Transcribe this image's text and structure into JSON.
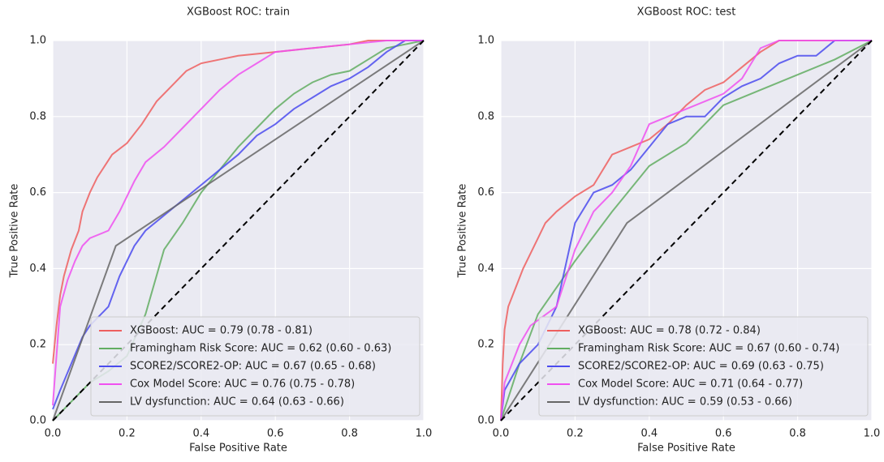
{
  "chart_data": [
    {
      "type": "line",
      "title": "XGBoost ROC: train",
      "x_label": "False Positive Rate",
      "y_label": "True Positive Rate",
      "xlim": [
        0,
        1
      ],
      "ylim": [
        0,
        1
      ],
      "xticks": [
        {
          "value": 0,
          "label": "0.0"
        },
        0.2,
        0.4,
        0.6,
        0.8,
        {
          "value": 1,
          "label": "1.0"
        }
      ],
      "yticks": [
        {
          "value": 0,
          "label": "0.0"
        },
        0.2,
        0.4,
        0.6,
        0.8,
        {
          "value": 1,
          "label": "1.0"
        }
      ],
      "grid": true,
      "legend": "lower right",
      "series": [
        {
          "name": "XGBoost: AUC = 0.79 (0.78 - 0.81)",
          "color": "#ee5f5f",
          "x": [
            0,
            0.005,
            0.01,
            0.02,
            0.03,
            0.05,
            0.07,
            0.08,
            0.1,
            0.12,
            0.14,
            0.16,
            0.2,
            0.24,
            0.28,
            0.32,
            0.36,
            0.4,
            0.45,
            0.5,
            0.6,
            0.7,
            0.8,
            0.85,
            1
          ],
          "values": [
            0.15,
            0.2,
            0.25,
            0.33,
            0.38,
            0.45,
            0.5,
            0.55,
            0.6,
            0.64,
            0.67,
            0.7,
            0.73,
            0.78,
            0.84,
            0.88,
            0.92,
            0.94,
            0.95,
            0.96,
            0.97,
            0.98,
            0.99,
            1,
            1
          ]
        },
        {
          "name": "Framingham Risk Score: AUC = 0.62 (0.60 - 0.63)",
          "color": "#62ad62",
          "x": [
            0,
            0.05,
            0.1,
            0.15,
            0.2,
            0.25,
            0.3,
            0.35,
            0.4,
            0.45,
            0.5,
            0.55,
            0.6,
            0.65,
            0.7,
            0.75,
            0.8,
            0.85,
            0.9,
            0.95,
            1
          ],
          "values": [
            0,
            0.05,
            0.1,
            0.13,
            0.17,
            0.28,
            0.45,
            0.52,
            0.6,
            0.66,
            0.72,
            0.77,
            0.82,
            0.86,
            0.89,
            0.91,
            0.92,
            0.95,
            0.98,
            0.99,
            1
          ]
        },
        {
          "name": "SCORE2/SCORE2-OP: AUC = 0.67 (0.65 - 0.68)",
          "color": "#4b4bee",
          "x": [
            0,
            0.02,
            0.05,
            0.08,
            0.1,
            0.15,
            0.18,
            0.22,
            0.25,
            0.3,
            0.35,
            0.4,
            0.45,
            0.5,
            0.55,
            0.6,
            0.65,
            0.7,
            0.75,
            0.8,
            0.85,
            0.9,
            0.95,
            1
          ],
          "values": [
            0.03,
            0.08,
            0.15,
            0.22,
            0.25,
            0.3,
            0.38,
            0.46,
            0.5,
            0.54,
            0.58,
            0.62,
            0.66,
            0.7,
            0.75,
            0.78,
            0.82,
            0.85,
            0.88,
            0.9,
            0.93,
            0.97,
            1,
            1
          ]
        },
        {
          "name": "Cox Model Score: AUC = 0.76 (0.75 - 0.78)",
          "color": "#f050f0",
          "x": [
            0,
            0.02,
            0.04,
            0.06,
            0.08,
            0.1,
            0.15,
            0.18,
            0.22,
            0.25,
            0.3,
            0.35,
            0.4,
            0.45,
            0.5,
            0.55,
            0.6,
            0.7,
            0.8,
            0.9,
            1
          ],
          "values": [
            0.04,
            0.3,
            0.37,
            0.42,
            0.46,
            0.48,
            0.5,
            0.55,
            0.63,
            0.68,
            0.72,
            0.77,
            0.82,
            0.87,
            0.91,
            0.94,
            0.97,
            0.98,
            0.99,
            1,
            1
          ]
        },
        {
          "name": "LV dysfunction: AUC = 0.64 (0.63 - 0.66)",
          "color": "#666666",
          "x": [
            0,
            0.17,
            1
          ],
          "values": [
            0,
            0.46,
            1
          ]
        }
      ]
    },
    {
      "type": "line",
      "title": "XGBoost ROC: test",
      "x_label": "False Positive Rate",
      "y_label": "True Positive Rate",
      "xlim": [
        0,
        1
      ],
      "ylim": [
        0,
        1
      ],
      "xticks": [
        {
          "value": 0,
          "label": "0.0"
        },
        0.2,
        0.4,
        0.6,
        0.8,
        {
          "value": 1,
          "label": "1.0"
        }
      ],
      "yticks": [
        {
          "value": 0,
          "label": "0.0"
        },
        0.2,
        0.4,
        0.6,
        0.8,
        {
          "value": 1,
          "label": "1.0"
        }
      ],
      "grid": true,
      "legend": "lower right",
      "series": [
        {
          "name": "XGBoost: AUC = 0.78 (0.72 - 0.84)",
          "color": "#ee5f5f",
          "x": [
            0,
            0.005,
            0.01,
            0.02,
            0.04,
            0.06,
            0.08,
            0.1,
            0.12,
            0.15,
            0.2,
            0.25,
            0.3,
            0.35,
            0.4,
            0.45,
            0.5,
            0.55,
            0.6,
            0.65,
            0.7,
            0.75,
            1
          ],
          "values": [
            0,
            0.15,
            0.24,
            0.3,
            0.35,
            0.4,
            0.44,
            0.48,
            0.52,
            0.55,
            0.59,
            0.62,
            0.7,
            0.72,
            0.74,
            0.78,
            0.83,
            0.87,
            0.89,
            0.93,
            0.97,
            1,
            1
          ]
        },
        {
          "name": "Framingham Risk Score: AUC = 0.67 (0.60 - 0.74)",
          "color": "#62ad62",
          "x": [
            0,
            0.05,
            0.1,
            0.15,
            0.2,
            0.3,
            0.4,
            0.5,
            0.6,
            0.7,
            0.8,
            0.9,
            1
          ],
          "values": [
            0,
            0.15,
            0.28,
            0.35,
            0.42,
            0.55,
            0.67,
            0.73,
            0.83,
            0.87,
            0.91,
            0.95,
            1
          ]
        },
        {
          "name": "SCORE2/SCORE2-OP: AUC = 0.69 (0.63 - 0.75)",
          "color": "#4b4bee",
          "x": [
            0,
            0.01,
            0.05,
            0.1,
            0.15,
            0.2,
            0.25,
            0.3,
            0.35,
            0.4,
            0.45,
            0.5,
            0.55,
            0.6,
            0.65,
            0.7,
            0.75,
            0.8,
            0.85,
            0.9,
            1
          ],
          "values": [
            0,
            0.08,
            0.15,
            0.2,
            0.3,
            0.52,
            0.6,
            0.62,
            0.66,
            0.72,
            0.78,
            0.8,
            0.8,
            0.85,
            0.88,
            0.9,
            0.94,
            0.96,
            0.96,
            1,
            1
          ]
        },
        {
          "name": "Cox Model Score: AUC = 0.71 (0.64 - 0.77)",
          "color": "#f050f0",
          "x": [
            0,
            0.01,
            0.05,
            0.08,
            0.15,
            0.2,
            0.25,
            0.3,
            0.35,
            0.4,
            0.45,
            0.5,
            0.55,
            0.6,
            0.65,
            0.7,
            0.75,
            1
          ],
          "values": [
            0,
            0.1,
            0.2,
            0.25,
            0.3,
            0.45,
            0.55,
            0.6,
            0.67,
            0.78,
            0.8,
            0.82,
            0.84,
            0.86,
            0.9,
            0.98,
            1,
            1
          ]
        },
        {
          "name": "LV dysfunction: AUC = 0.59 (0.53 - 0.66)",
          "color": "#666666",
          "x": [
            0,
            0.34,
            1
          ],
          "values": [
            0,
            0.52,
            1
          ]
        }
      ]
    }
  ]
}
